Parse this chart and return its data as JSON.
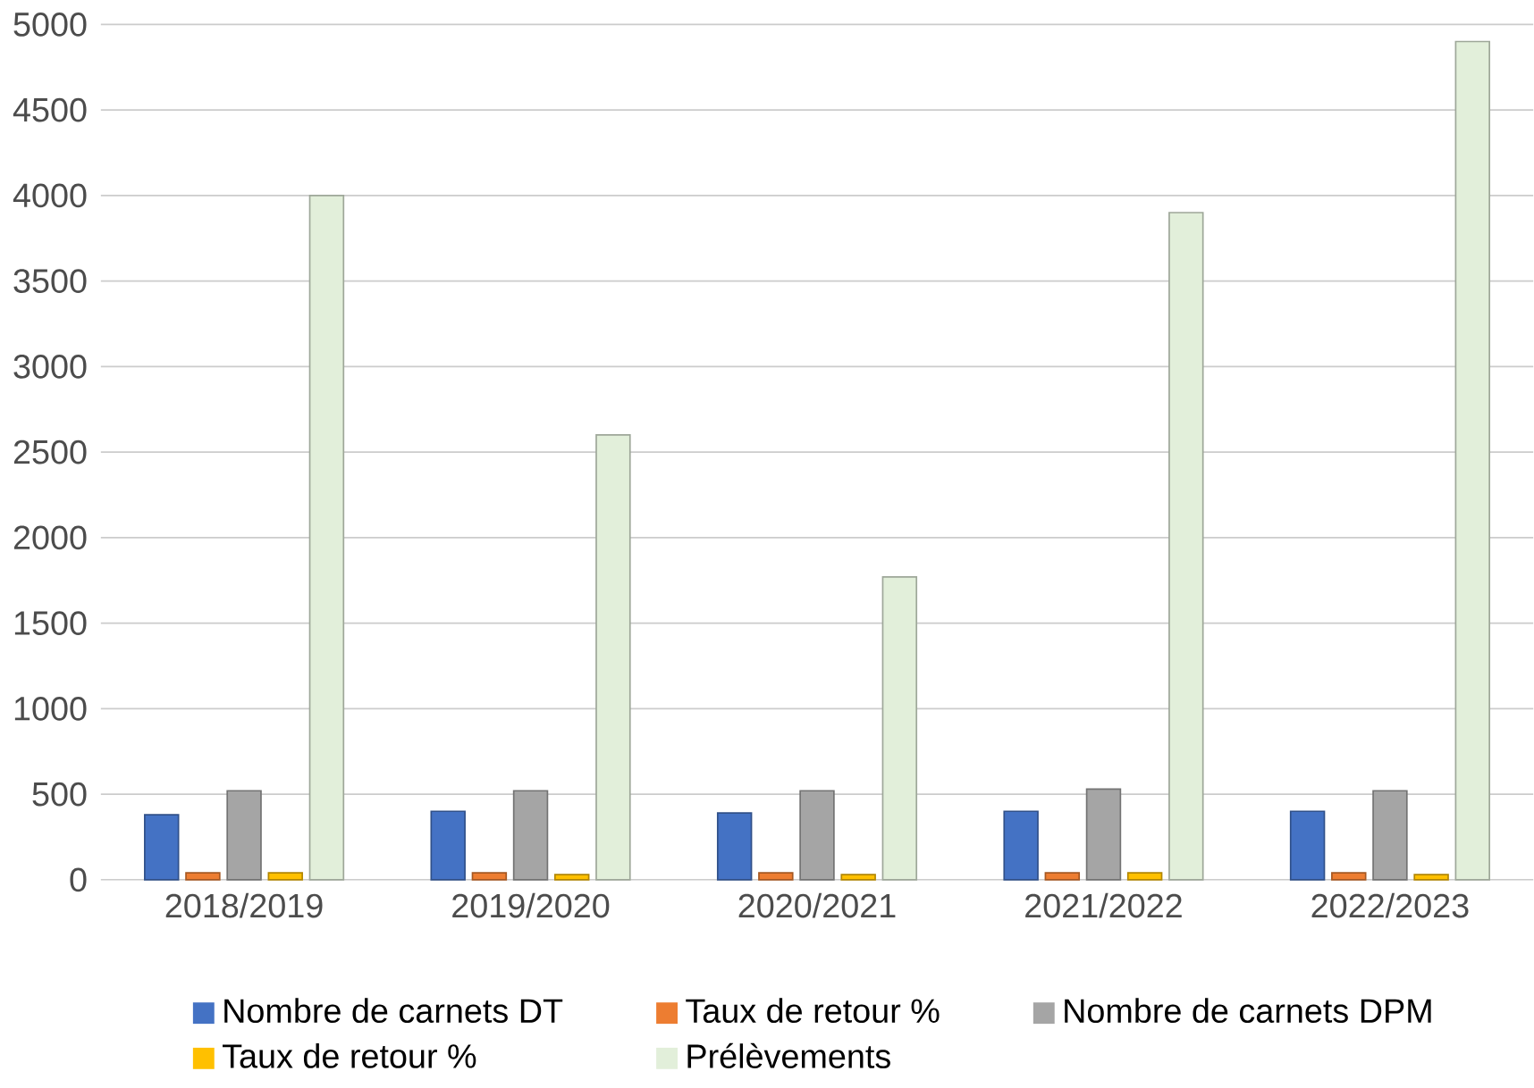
{
  "chart_data": {
    "type": "bar",
    "categories": [
      "2018/2019",
      "2019/2020",
      "2020/2021",
      "2021/2022",
      "2022/2023"
    ],
    "series": [
      {
        "name": "Nombre de carnets DT",
        "color": "#4472c4",
        "values": [
          380,
          400,
          390,
          400,
          400
        ]
      },
      {
        "name": "Taux de retour %",
        "color": "#ed7d31",
        "values": [
          40,
          40,
          40,
          40,
          40
        ]
      },
      {
        "name": "Nombre de carnets DPM",
        "color": "#a5a5a5",
        "values": [
          520,
          520,
          520,
          530,
          520
        ]
      },
      {
        "name": "Taux de retour %",
        "color": "#ffc000",
        "values": [
          40,
          30,
          30,
          40,
          30
        ]
      },
      {
        "name": "Prélèvements",
        "color": "#e2efda",
        "values": [
          4000,
          2600,
          1770,
          3900,
          4900
        ]
      }
    ],
    "ylim": [
      0,
      5000
    ],
    "yticks": [
      0,
      500,
      1000,
      1500,
      2000,
      2500,
      3000,
      3500,
      4000,
      4500,
      5000
    ],
    "grid": "y",
    "legend": "bottom"
  }
}
